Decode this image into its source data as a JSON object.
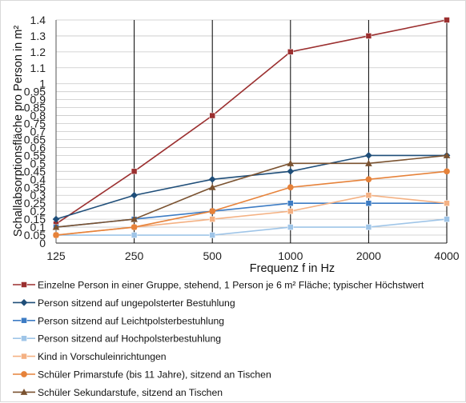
{
  "chart_data": {
    "type": "line",
    "xlabel": "Frequenz f in Hz",
    "ylabel": "Schallabsorptionsfläche pro Person in m²",
    "categories": [
      "125",
      "250",
      "500",
      "1000",
      "2000",
      "4000"
    ],
    "ylim": [
      0,
      1.4
    ],
    "yticks": [
      "0",
      "0.05",
      "0.1",
      "0.15",
      "0.2",
      "0.25",
      "0.3",
      "0.35",
      "0.4",
      "0.45",
      "0.5",
      "0.55",
      "0.6",
      "0.65",
      "0.7",
      "0.75",
      "0.8",
      "0.85",
      "0.9",
      "0.95",
      "1",
      "1.1",
      "1.2",
      "1.3",
      "1.4"
    ],
    "ytick_values": [
      0,
      0.05,
      0.1,
      0.15,
      0.2,
      0.25,
      0.3,
      0.35,
      0.4,
      0.45,
      0.5,
      0.55,
      0.6,
      0.65,
      0.7,
      0.75,
      0.8,
      0.85,
      0.9,
      0.95,
      1,
      1.1,
      1.2,
      1.3,
      1.4
    ],
    "grid": true,
    "legend_position": "bottom",
    "series": [
      {
        "name": "Einzelne Person in einer Gruppe, stehend, 1 Person je 6 m² Fläche; typischer Höchstwert",
        "values": [
          0.12,
          0.45,
          0.8,
          1.2,
          1.3,
          1.4
        ],
        "color": "#9b2f2f",
        "marker": "square"
      },
      {
        "name": "Person sitzend auf ungepolsterter Bestuhlung",
        "values": [
          0.15,
          0.3,
          0.4,
          0.45,
          0.55,
          0.55
        ],
        "color": "#1f4e79",
        "marker": "diamond"
      },
      {
        "name": "Person sitzend auf Leichtpolsterbestuhlung",
        "values": [
          0.1,
          0.15,
          0.2,
          0.25,
          0.25,
          0.25
        ],
        "color": "#3d7cc4",
        "marker": "square"
      },
      {
        "name": "Person sitzend auf Hochpolsterbestuhlung",
        "values": [
          0.05,
          0.05,
          0.05,
          0.1,
          0.1,
          0.15
        ],
        "color": "#9fc5e8",
        "marker": "square"
      },
      {
        "name": "Kind in Vorschuleinrichtungen",
        "values": [
          0.05,
          0.1,
          0.15,
          0.2,
          0.3,
          0.25
        ],
        "color": "#f4b183",
        "marker": "square"
      },
      {
        "name": "Schüler Primarstufe (bis 11 Jahre), sitzend an Tischen",
        "values": [
          0.05,
          0.1,
          0.2,
          0.35,
          0.4,
          0.45
        ],
        "color": "#e6823a",
        "marker": "circle"
      },
      {
        "name": "Schüler Sekundarstufe, sitzend an Tischen",
        "values": [
          0.1,
          0.15,
          0.35,
          0.5,
          0.5,
          0.55
        ],
        "color": "#7a5230",
        "marker": "triangle"
      }
    ]
  }
}
